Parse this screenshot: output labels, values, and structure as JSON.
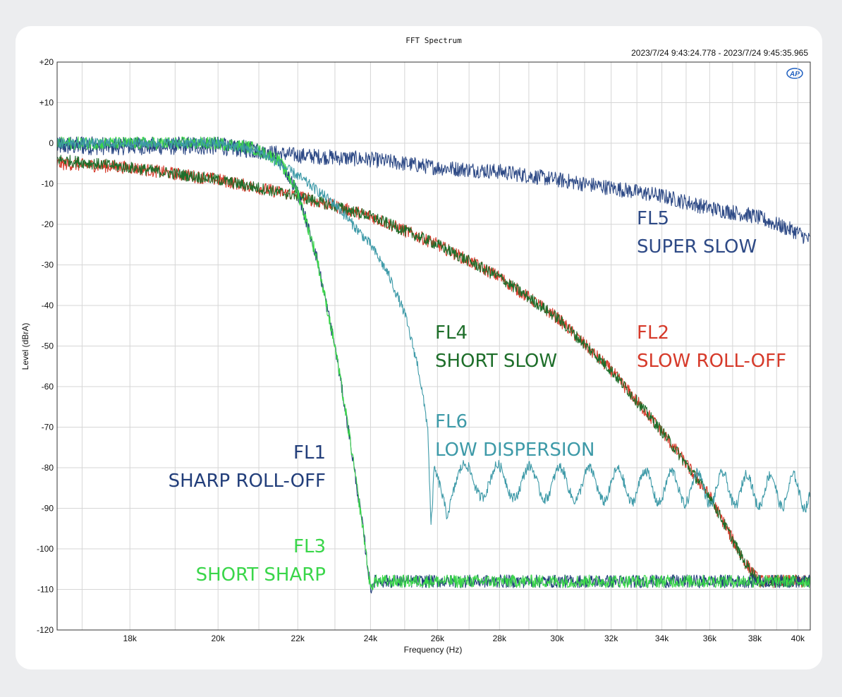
{
  "chart_data": {
    "type": "line",
    "title": "FFT Spectrum",
    "timestamp": "2023/7/24 9:43:24.778 -   2023/7/24 9:45:35.965",
    "logo": "AP",
    "xlabel": "Frequency (Hz)",
    "ylabel": "Level (dBrA)",
    "x_scale": "log",
    "xlim": [
      16500,
      40600
    ],
    "ylim": [
      -120,
      20
    ],
    "x_ticks": [
      {
        "value": 18000,
        "label": "18k"
      },
      {
        "value": 20000,
        "label": "20k"
      },
      {
        "value": 22000,
        "label": "22k"
      },
      {
        "value": 24000,
        "label": "24k"
      },
      {
        "value": 26000,
        "label": "26k"
      },
      {
        "value": 28000,
        "label": "28k"
      },
      {
        "value": 30000,
        "label": "30k"
      },
      {
        "value": 32000,
        "label": "32k"
      },
      {
        "value": 34000,
        "label": "34k"
      },
      {
        "value": 36000,
        "label": "36k"
      },
      {
        "value": 38000,
        "label": "38k"
      },
      {
        "value": 40000,
        "label": "40k"
      }
    ],
    "y_ticks": [
      {
        "value": 20,
        "label": "+20"
      },
      {
        "value": 10,
        "label": "+10"
      },
      {
        "value": 0,
        "label": "0"
      },
      {
        "value": -10,
        "label": "-10"
      },
      {
        "value": -20,
        "label": "-20"
      },
      {
        "value": -30,
        "label": "-30"
      },
      {
        "value": -40,
        "label": "-40"
      },
      {
        "value": -50,
        "label": "-50"
      },
      {
        "value": -60,
        "label": "-60"
      },
      {
        "value": -70,
        "label": "-70"
      },
      {
        "value": -80,
        "label": "-80"
      },
      {
        "value": -90,
        "label": "-90"
      },
      {
        "value": -100,
        "label": "-100"
      },
      {
        "value": -110,
        "label": "-110"
      },
      {
        "value": -120,
        "label": "-120"
      }
    ],
    "series": [
      {
        "name": "FL5 SUPER SLOW",
        "color": "#2e4a86",
        "noise": 1.2,
        "ripple": 0,
        "points": [
          [
            16500,
            -1
          ],
          [
            18000,
            -1
          ],
          [
            20000,
            -1
          ],
          [
            22000,
            -3
          ],
          [
            24000,
            -4
          ],
          [
            26000,
            -6
          ],
          [
            28000,
            -7
          ],
          [
            30000,
            -9
          ],
          [
            32000,
            -11
          ],
          [
            34000,
            -13
          ],
          [
            36000,
            -16
          ],
          [
            38000,
            -18
          ],
          [
            40000,
            -22
          ],
          [
            40600,
            -24
          ]
        ]
      },
      {
        "name": "FL2 SLOW ROLL-OFF",
        "color": "#d63a2a",
        "noise": 1.0,
        "ripple": 0,
        "points": [
          [
            16500,
            -5
          ],
          [
            18000,
            -6
          ],
          [
            20000,
            -9
          ],
          [
            22000,
            -13
          ],
          [
            24000,
            -18
          ],
          [
            26000,
            -25
          ],
          [
            28000,
            -33
          ],
          [
            30000,
            -43
          ],
          [
            32000,
            -56
          ],
          [
            34000,
            -71
          ],
          [
            36000,
            -87
          ],
          [
            37500,
            -103
          ],
          [
            38200,
            -108
          ],
          [
            40600,
            -108
          ]
        ]
      },
      {
        "name": "FL4 SHORT SLOW",
        "color": "#1e6e2a",
        "noise": 0.9,
        "ripple": 0,
        "points": [
          [
            16500,
            -4
          ],
          [
            18000,
            -6
          ],
          [
            20000,
            -9
          ],
          [
            22000,
            -13
          ],
          [
            24000,
            -18
          ],
          [
            26000,
            -25
          ],
          [
            28000,
            -33
          ],
          [
            30000,
            -43
          ],
          [
            32000,
            -56
          ],
          [
            34000,
            -71
          ],
          [
            36000,
            -87
          ],
          [
            37500,
            -103
          ],
          [
            38200,
            -108
          ],
          [
            40600,
            -108
          ]
        ]
      },
      {
        "name": "FL1 SHARP ROLL-OFF",
        "color": "#223e7a",
        "noise": 1.0,
        "ripple": 0,
        "points": [
          [
            16500,
            0
          ],
          [
            18000,
            0
          ],
          [
            20000,
            0
          ],
          [
            20800,
            -1
          ],
          [
            21500,
            -4
          ],
          [
            22000,
            -12
          ],
          [
            22500,
            -28
          ],
          [
            23000,
            -50
          ],
          [
            23400,
            -72
          ],
          [
            23800,
            -96
          ],
          [
            24000,
            -110
          ],
          [
            24100,
            -108
          ],
          [
            40600,
            -108
          ]
        ]
      },
      {
        "name": "FL3 SHORT SHARP",
        "color": "#3ad64a",
        "noise": 1.0,
        "ripple": 0,
        "points": [
          [
            16500,
            0
          ],
          [
            18000,
            0
          ],
          [
            20000,
            0
          ],
          [
            20800,
            -1
          ],
          [
            21500,
            -4
          ],
          [
            22000,
            -12
          ],
          [
            22500,
            -28
          ],
          [
            23000,
            -50
          ],
          [
            23400,
            -72
          ],
          [
            23800,
            -96
          ],
          [
            24000,
            -110
          ],
          [
            24100,
            -108
          ],
          [
            40600,
            -108
          ]
        ]
      },
      {
        "name": "FL6 LOW DISPERSION",
        "color": "#3e9aa8",
        "noise": 0.8,
        "ripple": 4,
        "points": [
          [
            16500,
            0
          ],
          [
            18000,
            0
          ],
          [
            20000,
            0
          ],
          [
            21000,
            -2
          ],
          [
            22000,
            -8
          ],
          [
            23000,
            -15
          ],
          [
            24000,
            -25
          ],
          [
            24500,
            -32
          ],
          [
            25000,
            -42
          ],
          [
            25400,
            -55
          ],
          [
            25700,
            -70
          ],
          [
            25800,
            -95
          ],
          [
            25900,
            -80
          ],
          [
            26100,
            -85
          ],
          [
            26300,
            -92
          ],
          [
            26600,
            -83
          ],
          [
            40600,
            -86
          ]
        ]
      }
    ],
    "annotations": [
      {
        "line1": "FL5",
        "line2": "SUPER SLOW",
        "color": "#2e4a86"
      },
      {
        "line1": "FL4",
        "line2": "SHORT SLOW",
        "color": "#1e6e2a"
      },
      {
        "line1": "FL2",
        "line2": "SLOW ROLL-OFF",
        "color": "#d63a2a"
      },
      {
        "line1": "FL6",
        "line2": "LOW DISPERSION",
        "color": "#3e9aa8"
      },
      {
        "line1": "FL1",
        "line2": "SHARP ROLL-OFF",
        "color": "#223e7a"
      },
      {
        "line1": "FL3",
        "line2": "SHORT SHARP",
        "color": "#3ad64a"
      }
    ]
  }
}
